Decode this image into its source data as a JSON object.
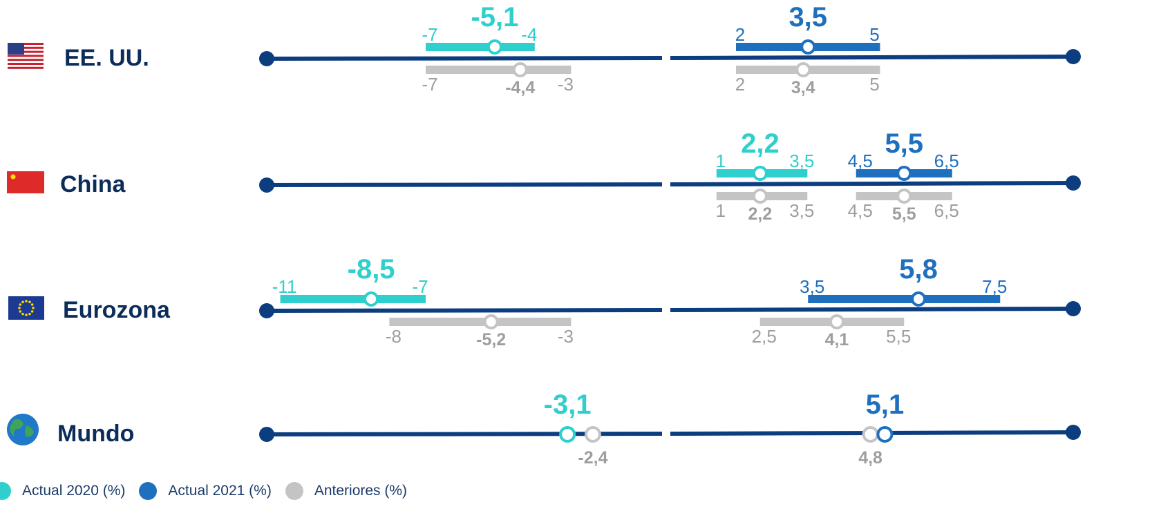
{
  "chart_data": {
    "type": "range-dot",
    "legend": [
      {
        "key": "a2020",
        "label": "Actual 2020 (%)",
        "color": "#2ecfcc"
      },
      {
        "key": "a2021",
        "label": "Actual 2021 (%)",
        "color": "#1f6fbf"
      },
      {
        "key": "prev",
        "label": "Anteriores (%)",
        "color": "#c4c4c4"
      }
    ],
    "colors": {
      "axis": "#0c3d7f",
      "country": "#0c2d5a",
      "a2020": "#2ecfcc",
      "a2021": "#1f6fbf",
      "prev": "#c4c4c4",
      "prev_text": "#9e9e9e"
    },
    "rows": [
      {
        "country": "EE. UU.",
        "icon": "us-flag-icon",
        "y2020": {
          "actual": {
            "low": "-7",
            "high": "-4",
            "center": "-5,1"
          },
          "previous": {
            "low": "-7",
            "high": "-3",
            "center": "-4,4"
          }
        },
        "y2021": {
          "actual": {
            "low": "2",
            "high": "5",
            "center": "3,5"
          },
          "previous": {
            "low": "2",
            "high": "5",
            "center": "3,4"
          }
        }
      },
      {
        "country": "China",
        "icon": "china-flag-icon",
        "y2020": {
          "actual": {
            "low": "1",
            "high": "3,5",
            "center": "2,2"
          },
          "previous": {
            "low": "1",
            "high": "3,5",
            "center": "2,2"
          }
        },
        "y2021": {
          "actual": {
            "low": "4,5",
            "high": "6,5",
            "center": "5,5"
          },
          "previous": {
            "low": "4,5",
            "high": "6,5",
            "center": "5,5"
          }
        }
      },
      {
        "country": "Eurozona",
        "icon": "eu-flag-icon",
        "y2020": {
          "actual": {
            "low": "-11",
            "high": "-7",
            "center": "-8,5"
          },
          "previous": {
            "low": "-8",
            "high": "-3",
            "center": "-5,2"
          }
        },
        "y2021": {
          "actual": {
            "low": "3,5",
            "high": "7,5",
            "center": "5,8"
          },
          "previous": {
            "low": "2,5",
            "high": "5,5",
            "center": "4,1"
          }
        }
      },
      {
        "country": "Mundo",
        "icon": "globe-icon",
        "y2020": {
          "actual": {
            "center": "-3,1"
          },
          "previous": {
            "center": "-2,4"
          }
        },
        "y2021": {
          "actual": {
            "center": "5,1"
          },
          "previous": {
            "center": "4,8"
          }
        }
      }
    ]
  }
}
